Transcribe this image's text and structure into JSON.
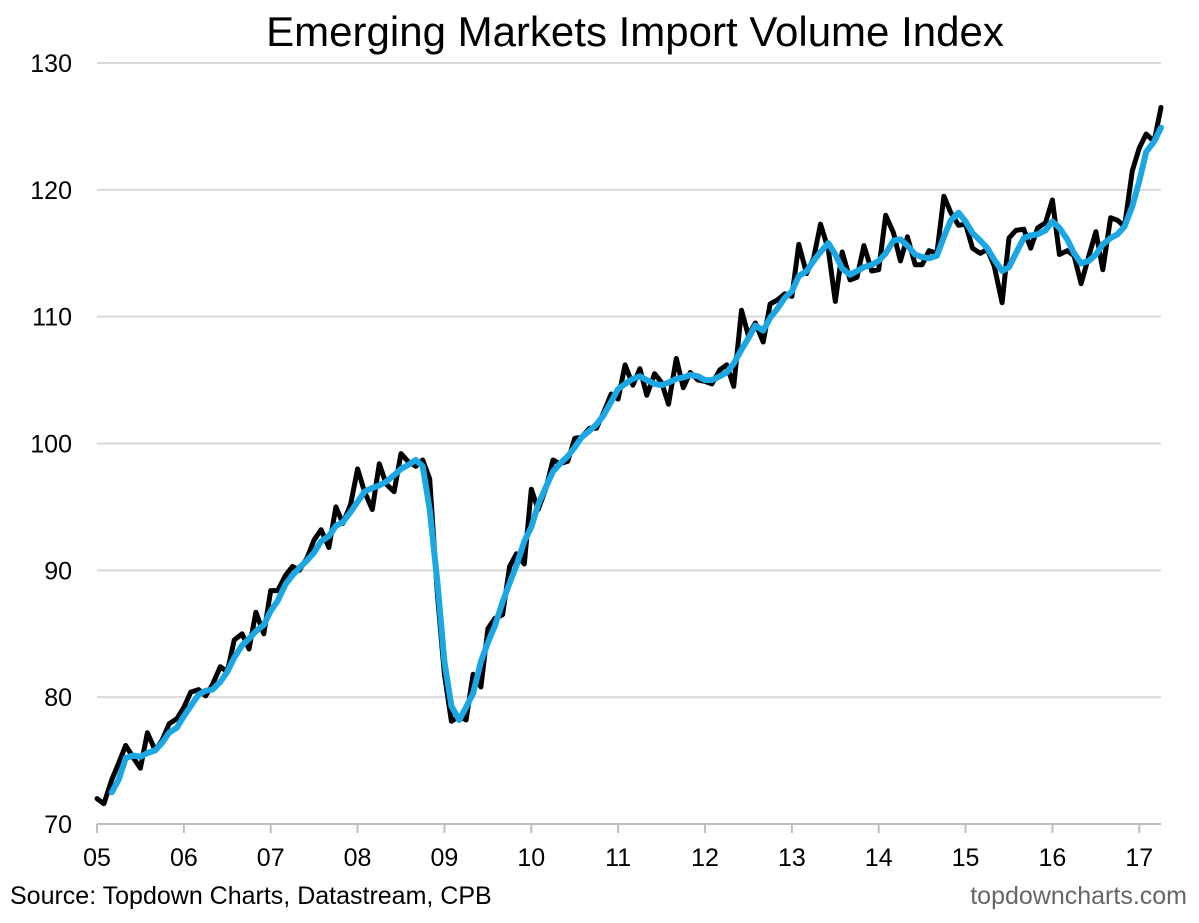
{
  "chart_data": {
    "type": "line",
    "title": "Emerging Markets Import Volume Index",
    "xlabel": "",
    "ylabel": "",
    "ylim": [
      70,
      130
    ],
    "xlim": [
      2005.0,
      2017.25
    ],
    "y_ticks": [
      "70",
      "80",
      "90",
      "100",
      "110",
      "120",
      "130"
    ],
    "x_ticks": [
      "05",
      "06",
      "07",
      "08",
      "09",
      "10",
      "11",
      "12",
      "13",
      "14",
      "15",
      "16",
      "17"
    ],
    "grid": "horizontal",
    "legend": "none",
    "series": [
      {
        "color": "#000000",
        "points": [
          [
            2005.0,
            72.0
          ],
          [
            2005.08,
            71.6
          ],
          [
            2005.17,
            73.5
          ],
          [
            2005.25,
            74.8
          ],
          [
            2005.33,
            76.2
          ],
          [
            2005.42,
            75.2
          ],
          [
            2005.5,
            74.4
          ],
          [
            2005.58,
            77.2
          ],
          [
            2005.67,
            75.8
          ],
          [
            2005.75,
            76.6
          ],
          [
            2005.83,
            77.9
          ],
          [
            2005.92,
            78.3
          ],
          [
            2006.0,
            79.2
          ],
          [
            2006.08,
            80.4
          ],
          [
            2006.17,
            80.6
          ],
          [
            2006.25,
            80.1
          ],
          [
            2006.33,
            81.0
          ],
          [
            2006.42,
            82.4
          ],
          [
            2006.5,
            82.0
          ],
          [
            2006.58,
            84.5
          ],
          [
            2006.67,
            85.0
          ],
          [
            2006.75,
            83.8
          ],
          [
            2006.83,
            86.7
          ],
          [
            2006.92,
            85.0
          ],
          [
            2007.0,
            88.4
          ],
          [
            2007.08,
            88.4
          ],
          [
            2007.17,
            89.6
          ],
          [
            2007.25,
            90.3
          ],
          [
            2007.33,
            90.0
          ],
          [
            2007.42,
            91.0
          ],
          [
            2007.5,
            92.4
          ],
          [
            2007.58,
            93.2
          ],
          [
            2007.67,
            91.8
          ],
          [
            2007.75,
            95.0
          ],
          [
            2007.83,
            93.7
          ],
          [
            2007.92,
            95.2
          ],
          [
            2008.0,
            98.0
          ],
          [
            2008.08,
            96.2
          ],
          [
            2008.17,
            94.8
          ],
          [
            2008.25,
            98.4
          ],
          [
            2008.33,
            96.8
          ],
          [
            2008.42,
            96.2
          ],
          [
            2008.5,
            99.2
          ],
          [
            2008.58,
            98.6
          ],
          [
            2008.67,
            98.2
          ],
          [
            2008.75,
            98.7
          ],
          [
            2008.83,
            97.2
          ],
          [
            2008.92,
            88.0
          ],
          [
            2009.0,
            81.8
          ],
          [
            2009.08,
            78.1
          ],
          [
            2009.17,
            78.5
          ],
          [
            2009.25,
            78.2
          ],
          [
            2009.33,
            81.8
          ],
          [
            2009.42,
            80.8
          ],
          [
            2009.5,
            85.4
          ],
          [
            2009.58,
            86.2
          ],
          [
            2009.67,
            86.5
          ],
          [
            2009.75,
            90.3
          ],
          [
            2009.83,
            91.3
          ],
          [
            2009.92,
            90.5
          ],
          [
            2010.0,
            96.4
          ],
          [
            2010.08,
            94.8
          ],
          [
            2010.17,
            96.5
          ],
          [
            2010.25,
            98.7
          ],
          [
            2010.33,
            98.4
          ],
          [
            2010.42,
            98.6
          ],
          [
            2010.5,
            100.4
          ],
          [
            2010.58,
            100.5
          ],
          [
            2010.67,
            101.2
          ],
          [
            2010.75,
            101.2
          ],
          [
            2010.83,
            102.4
          ],
          [
            2010.92,
            103.9
          ],
          [
            2011.0,
            103.5
          ],
          [
            2011.08,
            106.2
          ],
          [
            2011.17,
            104.6
          ],
          [
            2011.25,
            105.9
          ],
          [
            2011.33,
            103.8
          ],
          [
            2011.42,
            105.5
          ],
          [
            2011.5,
            104.8
          ],
          [
            2011.58,
            103.1
          ],
          [
            2011.67,
            106.7
          ],
          [
            2011.75,
            104.4
          ],
          [
            2011.83,
            105.6
          ],
          [
            2011.92,
            105.0
          ],
          [
            2012.0,
            104.9
          ],
          [
            2012.08,
            104.7
          ],
          [
            2012.17,
            105.8
          ],
          [
            2012.25,
            106.2
          ],
          [
            2012.33,
            104.5
          ],
          [
            2012.42,
            110.5
          ],
          [
            2012.5,
            108.5
          ],
          [
            2012.58,
            109.5
          ],
          [
            2012.67,
            108.0
          ],
          [
            2012.75,
            111.0
          ],
          [
            2012.83,
            111.3
          ],
          [
            2012.92,
            111.8
          ],
          [
            2013.0,
            111.6
          ],
          [
            2013.08,
            115.7
          ],
          [
            2013.17,
            113.4
          ],
          [
            2013.25,
            114.6
          ],
          [
            2013.33,
            117.3
          ],
          [
            2013.42,
            115.3
          ],
          [
            2013.5,
            111.2
          ],
          [
            2013.58,
            115.1
          ],
          [
            2013.67,
            112.9
          ],
          [
            2013.75,
            113.1
          ],
          [
            2013.83,
            115.6
          ],
          [
            2013.92,
            113.6
          ],
          [
            2014.0,
            113.7
          ],
          [
            2014.08,
            118.0
          ],
          [
            2014.17,
            116.6
          ],
          [
            2014.25,
            114.4
          ],
          [
            2014.33,
            116.3
          ],
          [
            2014.42,
            114.1
          ],
          [
            2014.5,
            114.1
          ],
          [
            2014.58,
            115.2
          ],
          [
            2014.67,
            115.0
          ],
          [
            2014.75,
            119.5
          ],
          [
            2014.83,
            118.2
          ],
          [
            2014.92,
            117.2
          ],
          [
            2015.0,
            117.3
          ],
          [
            2015.08,
            115.4
          ],
          [
            2015.17,
            115.0
          ],
          [
            2015.25,
            115.3
          ],
          [
            2015.33,
            114.0
          ],
          [
            2015.42,
            111.1
          ],
          [
            2015.5,
            116.2
          ],
          [
            2015.58,
            116.8
          ],
          [
            2015.67,
            116.9
          ],
          [
            2015.75,
            115.4
          ],
          [
            2015.83,
            117.0
          ],
          [
            2015.92,
            117.4
          ],
          [
            2016.0,
            119.2
          ],
          [
            2016.08,
            114.9
          ],
          [
            2016.17,
            115.2
          ],
          [
            2016.25,
            114.8
          ],
          [
            2016.33,
            112.6
          ],
          [
            2016.42,
            114.8
          ],
          [
            2016.5,
            116.7
          ],
          [
            2016.58,
            113.7
          ],
          [
            2016.67,
            117.8
          ],
          [
            2016.75,
            117.6
          ],
          [
            2016.83,
            117.1
          ],
          [
            2016.92,
            121.5
          ],
          [
            2017.0,
            123.3
          ],
          [
            2017.08,
            124.4
          ],
          [
            2017.17,
            123.8
          ],
          [
            2017.25,
            126.5
          ]
        ]
      },
      {
        "color": "#1aa7e4",
        "points": [
          [
            2005.17,
            72.5
          ],
          [
            2005.25,
            73.5
          ],
          [
            2005.33,
            75.2
          ],
          [
            2005.42,
            75.4
          ],
          [
            2005.5,
            75.3
          ],
          [
            2005.58,
            75.6
          ],
          [
            2005.67,
            75.8
          ],
          [
            2005.75,
            76.4
          ],
          [
            2005.83,
            77.2
          ],
          [
            2005.92,
            77.6
          ],
          [
            2006.0,
            78.5
          ],
          [
            2006.08,
            79.3
          ],
          [
            2006.17,
            80.2
          ],
          [
            2006.25,
            80.5
          ],
          [
            2006.33,
            80.6
          ],
          [
            2006.42,
            81.2
          ],
          [
            2006.5,
            82.0
          ],
          [
            2006.58,
            83.1
          ],
          [
            2006.67,
            84.1
          ],
          [
            2006.75,
            84.6
          ],
          [
            2006.83,
            85.2
          ],
          [
            2006.92,
            85.7
          ],
          [
            2007.0,
            86.8
          ],
          [
            2007.08,
            87.6
          ],
          [
            2007.17,
            88.9
          ],
          [
            2007.25,
            89.6
          ],
          [
            2007.33,
            90.2
          ],
          [
            2007.42,
            90.8
          ],
          [
            2007.5,
            91.4
          ],
          [
            2007.58,
            92.3
          ],
          [
            2007.67,
            92.7
          ],
          [
            2007.75,
            93.5
          ],
          [
            2007.83,
            93.8
          ],
          [
            2007.92,
            94.6
          ],
          [
            2008.0,
            95.4
          ],
          [
            2008.08,
            96.2
          ],
          [
            2008.17,
            96.5
          ],
          [
            2008.25,
            96.7
          ],
          [
            2008.33,
            97.0
          ],
          [
            2008.42,
            97.5
          ],
          [
            2008.5,
            98.0
          ],
          [
            2008.58,
            98.3
          ],
          [
            2008.67,
            98.7
          ],
          [
            2008.75,
            98.2
          ],
          [
            2008.83,
            94.8
          ],
          [
            2008.92,
            89.0
          ],
          [
            2009.0,
            82.8
          ],
          [
            2009.08,
            79.3
          ],
          [
            2009.17,
            78.2
          ],
          [
            2009.25,
            79.2
          ],
          [
            2009.33,
            80.3
          ],
          [
            2009.42,
            82.8
          ],
          [
            2009.5,
            84.3
          ],
          [
            2009.58,
            85.6
          ],
          [
            2009.67,
            87.5
          ],
          [
            2009.75,
            89.0
          ],
          [
            2009.83,
            90.4
          ],
          [
            2009.92,
            92.3
          ],
          [
            2010.0,
            93.4
          ],
          [
            2010.08,
            95.2
          ],
          [
            2010.17,
            96.6
          ],
          [
            2010.25,
            97.8
          ],
          [
            2010.33,
            98.4
          ],
          [
            2010.42,
            99.0
          ],
          [
            2010.5,
            99.7
          ],
          [
            2010.58,
            100.5
          ],
          [
            2010.67,
            101.0
          ],
          [
            2010.75,
            101.5
          ],
          [
            2010.83,
            102.2
          ],
          [
            2010.92,
            103.3
          ],
          [
            2011.0,
            104.3
          ],
          [
            2011.08,
            104.7
          ],
          [
            2011.17,
            105.1
          ],
          [
            2011.25,
            105.3
          ],
          [
            2011.33,
            105.0
          ],
          [
            2011.42,
            104.7
          ],
          [
            2011.5,
            104.6
          ],
          [
            2011.58,
            104.8
          ],
          [
            2011.67,
            105.1
          ],
          [
            2011.75,
            105.2
          ],
          [
            2011.83,
            105.4
          ],
          [
            2011.92,
            105.3
          ],
          [
            2012.0,
            105.0
          ],
          [
            2012.08,
            105.0
          ],
          [
            2012.17,
            105.3
          ],
          [
            2012.25,
            105.6
          ],
          [
            2012.33,
            106.3
          ],
          [
            2012.42,
            107.4
          ],
          [
            2012.5,
            108.3
          ],
          [
            2012.58,
            109.3
          ],
          [
            2012.67,
            108.9
          ],
          [
            2012.75,
            109.9
          ],
          [
            2012.83,
            110.6
          ],
          [
            2012.92,
            111.5
          ],
          [
            2013.0,
            112.0
          ],
          [
            2013.08,
            113.2
          ],
          [
            2013.17,
            113.6
          ],
          [
            2013.25,
            114.4
          ],
          [
            2013.33,
            115.1
          ],
          [
            2013.42,
            115.8
          ],
          [
            2013.5,
            114.9
          ],
          [
            2013.58,
            113.8
          ],
          [
            2013.67,
            113.3
          ],
          [
            2013.75,
            113.6
          ],
          [
            2013.83,
            113.9
          ],
          [
            2013.92,
            114.1
          ],
          [
            2014.0,
            114.4
          ],
          [
            2014.08,
            115.0
          ],
          [
            2014.17,
            116.0
          ],
          [
            2014.25,
            116.1
          ],
          [
            2014.33,
            115.6
          ],
          [
            2014.42,
            114.9
          ],
          [
            2014.5,
            114.7
          ],
          [
            2014.58,
            114.6
          ],
          [
            2014.67,
            114.8
          ],
          [
            2014.75,
            116.3
          ],
          [
            2014.83,
            117.6
          ],
          [
            2014.92,
            118.2
          ],
          [
            2015.0,
            117.5
          ],
          [
            2015.08,
            116.6
          ],
          [
            2015.17,
            116.0
          ],
          [
            2015.25,
            115.4
          ],
          [
            2015.33,
            114.5
          ],
          [
            2015.42,
            113.6
          ],
          [
            2015.5,
            113.9
          ],
          [
            2015.58,
            115.0
          ],
          [
            2015.67,
            116.2
          ],
          [
            2015.75,
            116.4
          ],
          [
            2015.83,
            116.5
          ],
          [
            2015.92,
            116.8
          ],
          [
            2016.0,
            117.5
          ],
          [
            2016.08,
            117.0
          ],
          [
            2016.17,
            116.1
          ],
          [
            2016.25,
            115.0
          ],
          [
            2016.33,
            114.2
          ],
          [
            2016.42,
            114.4
          ],
          [
            2016.5,
            114.9
          ],
          [
            2016.58,
            115.7
          ],
          [
            2016.67,
            116.2
          ],
          [
            2016.75,
            116.5
          ],
          [
            2016.83,
            117.1
          ],
          [
            2016.92,
            118.7
          ],
          [
            2017.0,
            120.7
          ],
          [
            2017.08,
            123.0
          ],
          [
            2017.17,
            123.8
          ],
          [
            2017.25,
            124.9
          ]
        ]
      }
    ]
  },
  "footer": {
    "source": "Source: Topdown Charts, Datastream, CPB",
    "brand": "topdowncharts.com"
  }
}
